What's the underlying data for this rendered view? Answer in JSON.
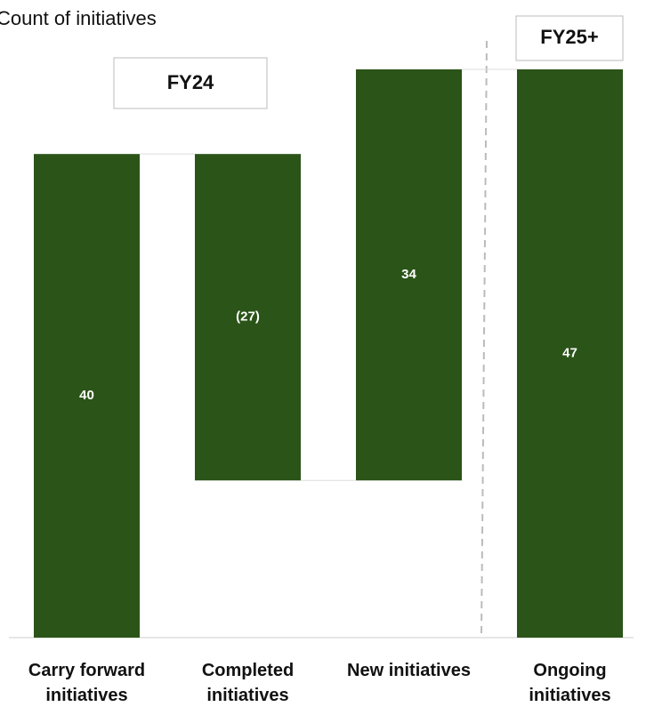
{
  "chart_data": {
    "type": "waterfall",
    "title": "Count of initiatives",
    "annotations": [
      "FY24",
      "FY25+"
    ],
    "categories": [
      "Carry forward initiatives",
      "Completed initiatives",
      "New initiatives",
      "Ongoing initiatives"
    ],
    "values": [
      40,
      -27,
      34,
      47
    ],
    "value_labels": [
      "40",
      "(27)",
      "34",
      "47"
    ],
    "measures": [
      "absolute",
      "relative",
      "relative",
      "total"
    ],
    "color": "#2b5418"
  }
}
